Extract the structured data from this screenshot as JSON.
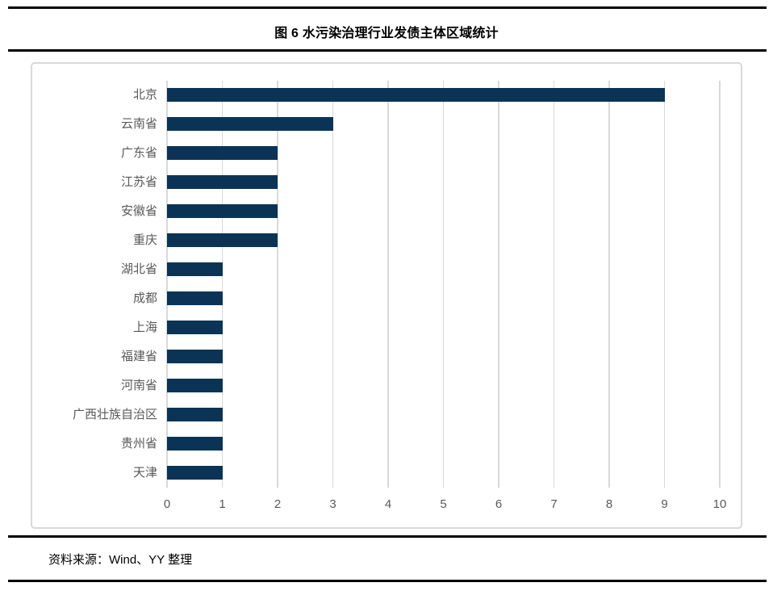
{
  "title": "图 6 水污染治理行业发债主体区域统计",
  "source": "资料来源：Wind、YY 整理",
  "colors": {
    "bar": "#0a3356",
    "gridline": "#d9d9d9",
    "axis_text": "#595959",
    "chart_border": "#d9d9d9",
    "rule": "#000000"
  },
  "chart_data": {
    "type": "bar",
    "orientation": "horizontal",
    "title": "图 6 水污染治理行业发债主体区域统计",
    "categories": [
      "北京",
      "云南省",
      "广东省",
      "江苏省",
      "安徽省",
      "重庆",
      "湖北省",
      "成都",
      "上海",
      "福建省",
      "河南省",
      "广西壮族自治区",
      "贵州省",
      "天津"
    ],
    "values": [
      9,
      3,
      2,
      2,
      2,
      2,
      1,
      1,
      1,
      1,
      1,
      1,
      1,
      1
    ],
    "xlabel": "",
    "ylabel": "",
    "xlim": [
      0,
      10
    ],
    "xticks": [
      0,
      1,
      2,
      3,
      4,
      5,
      6,
      7,
      8,
      9,
      10
    ],
    "grid": "vertical",
    "legend": "none",
    "bar_color": "#0a3356"
  }
}
